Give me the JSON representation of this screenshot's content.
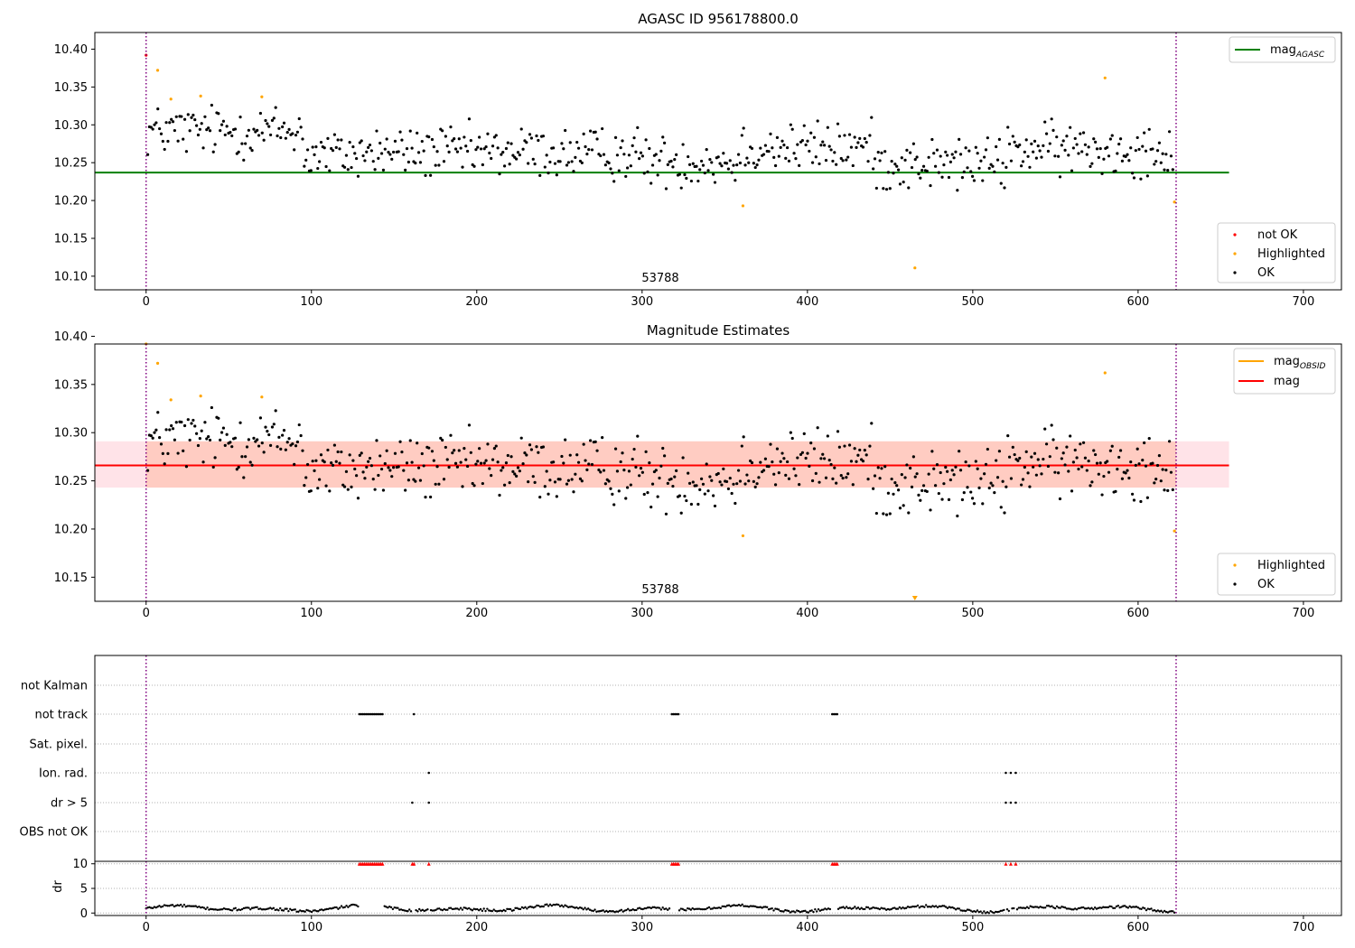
{
  "figure_title": "AGASC ID 956178800.0",
  "chart_data": [
    {
      "type": "scatter",
      "title": "AGASC ID 956178800.0",
      "xlabel": "",
      "ylabel": "",
      "xlim": [
        -31,
        723
      ],
      "ylim": [
        10.082,
        10.422
      ],
      "x_ticks": [
        0,
        100,
        200,
        300,
        400,
        500,
        600,
        700
      ],
      "y_ticks": [
        10.1,
        10.15,
        10.2,
        10.25,
        10.3,
        10.35,
        10.4
      ],
      "obsid_boundaries": [
        0,
        623
      ],
      "obsid_label": "53788",
      "obsid_label_x": 311,
      "reference_lines": [
        {
          "name": "mag_AGASC",
          "value": 10.237,
          "color": "#008000",
          "x_range": [
            -31,
            655
          ]
        }
      ],
      "legend_upper": {
        "placement": "upper right",
        "entries": [
          {
            "label_main": "mag",
            "label_sub": "AGASC",
            "color": "#008000",
            "kind": "line"
          }
        ]
      },
      "legend_lower": {
        "placement": "lower right",
        "entries": [
          {
            "label": "not OK",
            "color": "#ff0000",
            "kind": "point"
          },
          {
            "label": "Highlighted",
            "color": "#ffa500",
            "kind": "point"
          },
          {
            "label": "OK",
            "color": "#000000",
            "kind": "point"
          }
        ]
      },
      "series": [
        {
          "name": "not OK",
          "color": "#ff0000",
          "x": [
            0
          ],
          "y": [
            10.392
          ]
        },
        {
          "name": "Highlighted",
          "color": "#ffa500",
          "x": [
            7,
            15,
            33,
            70,
            361,
            465,
            580,
            622
          ],
          "y": [
            10.372,
            10.334,
            10.338,
            10.337,
            10.193,
            10.111,
            10.362,
            10.198
          ]
        },
        {
          "name": "OK",
          "color": "#000000",
          "generated": true,
          "count": 610,
          "x_range": [
            1,
            621
          ],
          "y_range": [
            10.205,
            10.333
          ]
        }
      ]
    },
    {
      "type": "scatter",
      "title": "Magnitude Estimates",
      "xlabel": "",
      "ylabel": "",
      "xlim": [
        -31,
        723
      ],
      "ylim": [
        10.125,
        10.392
      ],
      "x_ticks": [
        0,
        100,
        200,
        300,
        400,
        500,
        600,
        700
      ],
      "y_ticks": [
        10.15,
        10.2,
        10.25,
        10.3,
        10.35,
        10.4
      ],
      "obsid_boundaries": [
        0,
        623
      ],
      "obsid_label": "53788",
      "obsid_label_x": 311,
      "mean_mag": 10.266,
      "band_outer": [
        10.243,
        10.291
      ],
      "band_inner": [
        10.243,
        10.291
      ],
      "band_x_range": [
        -31,
        655
      ],
      "obsid_mag": 10.266,
      "obsid_x_range": [
        0,
        623
      ],
      "legend_upper": {
        "placement": "upper right",
        "entries": [
          {
            "label_main": "mag",
            "label_sub": "OBSID",
            "color": "#ffa500",
            "kind": "line"
          },
          {
            "label_main": "mag",
            "label_sub": "",
            "color": "#ff0000",
            "kind": "line"
          }
        ]
      },
      "legend_lower": {
        "placement": "lower right",
        "entries": [
          {
            "label": "Highlighted",
            "color": "#ffa500",
            "kind": "point"
          },
          {
            "label": "OK",
            "color": "#000000",
            "kind": "point"
          }
        ]
      },
      "series": [
        {
          "name": "Highlighted",
          "color": "#ffa500",
          "x": [
            0,
            7,
            15,
            33,
            70,
            361,
            580,
            622
          ],
          "y": [
            10.392,
            10.372,
            10.334,
            10.338,
            10.337,
            10.193,
            10.362,
            10.198
          ]
        },
        {
          "name": "OK",
          "color": "#000000",
          "generated": true,
          "count": 610,
          "x_range": [
            1,
            621
          ],
          "y_range": [
            10.205,
            10.333
          ]
        }
      ],
      "off_scale_markers": [
        {
          "x": 465,
          "color": "#ffa500"
        }
      ]
    },
    {
      "type": "scatter",
      "title": "",
      "xlim": [
        -31,
        723
      ],
      "categories": [
        "not Kalman",
        "not track",
        "Sat. pixel.",
        "Ion. rad.",
        "dr > 5",
        "OBS not OK"
      ],
      "x_ticks": [
        0,
        100,
        200,
        300,
        400,
        500,
        600,
        700
      ],
      "obsid_boundaries": [
        0,
        623
      ],
      "flags": {
        "not Kalman": [],
        "not track": [
          129,
          130,
          131,
          132,
          133,
          134,
          135,
          136,
          137,
          138,
          139,
          140,
          141,
          142,
          143,
          162,
          318,
          319,
          320,
          321,
          322,
          415,
          416,
          417,
          418
        ],
        "Sat. pixel.": [],
        "Ion. rad.": [
          171,
          520,
          523,
          526
        ],
        "dr > 5": [
          161,
          171,
          520,
          523,
          526
        ],
        "OBS not OK": []
      }
    },
    {
      "type": "scatter",
      "title": "",
      "xlabel": "",
      "ylabel": "dr",
      "xlim": [
        -31,
        723
      ],
      "ylim": [
        -0.5,
        10.5
      ],
      "x_ticks": [
        0,
        100,
        200,
        300,
        400,
        500,
        600,
        700
      ],
      "y_ticks": [
        0,
        5,
        10
      ],
      "obsid_boundaries": [
        0,
        623
      ],
      "dr_clip": 10,
      "clipped_x": [
        129,
        130,
        131,
        132,
        133,
        134,
        135,
        136,
        137,
        138,
        139,
        140,
        141,
        142,
        143,
        161,
        162,
        171,
        318,
        319,
        320,
        321,
        322,
        415,
        416,
        417,
        418,
        520,
        523,
        526
      ],
      "series": [
        {
          "name": "dr",
          "color": "#000000",
          "generated": true,
          "count": 622,
          "x_range": [
            0,
            622
          ],
          "y_range": [
            0.0,
            2.4
          ]
        }
      ]
    }
  ],
  "colors": {
    "ok": "#000000",
    "not_ok": "#ff0000",
    "highlighted": "#ffa500",
    "agasc_line": "#008000",
    "mean_line": "#ff0000",
    "band_outer": "#ffc0cb",
    "band_inner": "#ffa07a",
    "obsid_boundary": "#800080",
    "grid": "#b0b0b0"
  }
}
